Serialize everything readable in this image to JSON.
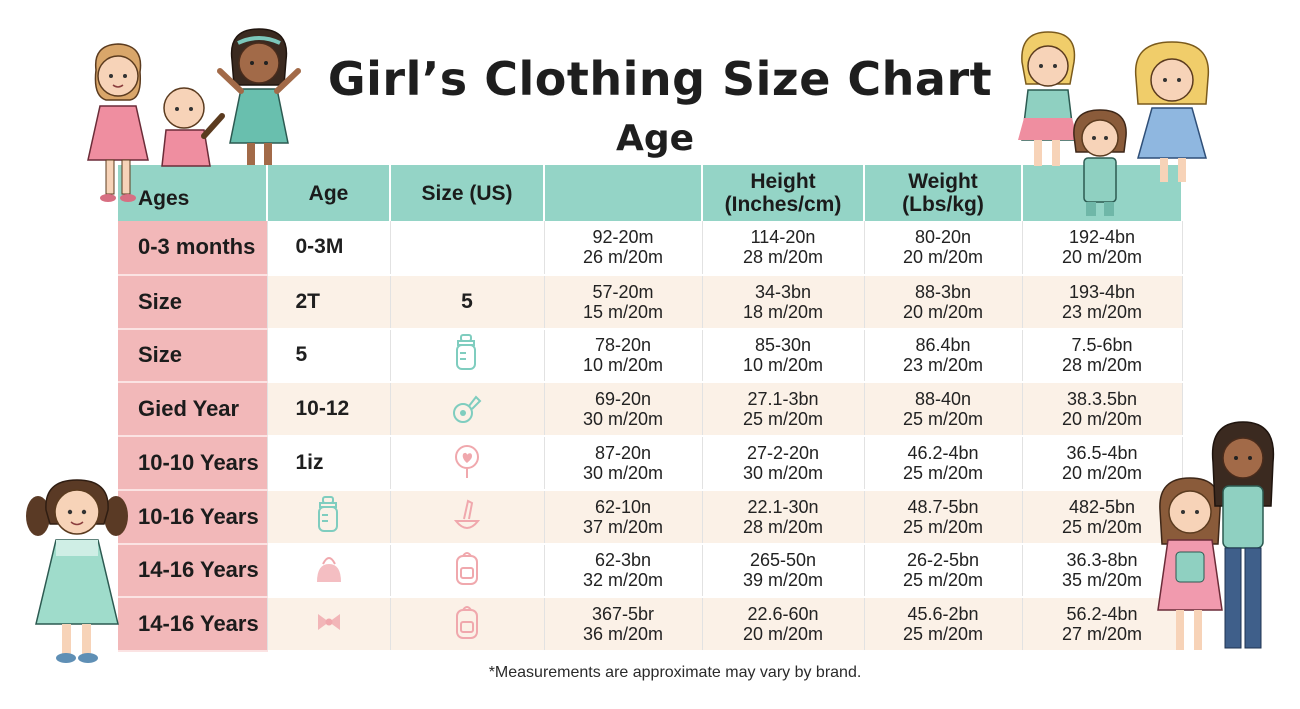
{
  "title": "Girl’s Clothing Size Chart",
  "subtitle": "Age",
  "headers": [
    "Ages",
    "Age",
    "Size (US)",
    "",
    "Height\n(Inches/cm)",
    "Weight\n(Lbs/kg)",
    ""
  ],
  "header_height": [
    "Height",
    "(Inches/cm)"
  ],
  "header_weight": [
    "Weight",
    "(Lbs/kg)"
  ],
  "rows": [
    {
      "label": "0-3 months",
      "age": "0-3M",
      "size": "",
      "icon_age": "",
      "icon_size": "",
      "m": [
        [
          "92-20m",
          "26 m/20m"
        ],
        [
          "114-20n",
          "28 m/20m"
        ],
        [
          "80-20n",
          "20 m/20m"
        ],
        [
          "192-4bn",
          "20 m/20m"
        ]
      ]
    },
    {
      "label": "Size",
      "age": "2T",
      "size": "5",
      "icon_age": "",
      "icon_size": "",
      "m": [
        [
          "57-20m",
          "15 m/20m"
        ],
        [
          "34-3bn",
          "18 m/20m"
        ],
        [
          "88-3bn",
          "20 m/20m"
        ],
        [
          "193-4bn",
          "23 m/20m"
        ]
      ]
    },
    {
      "label": "Size",
      "age": "5",
      "size": "",
      "icon_age": "",
      "icon_size": "baby-bottle-icon",
      "m": [
        [
          "78-20n",
          "10 m/20m"
        ],
        [
          "85-30n",
          "10 m/20m"
        ],
        [
          "86.4bn",
          "23 m/20m"
        ],
        [
          "7.5-6bn",
          "28 m/20m"
        ]
      ]
    },
    {
      "label": "Gied Year",
      "age": "10-12",
      "size": "",
      "icon_age": "",
      "icon_size": "rattle-icon",
      "m": [
        [
          "69-20n",
          "30 m/20m"
        ],
        [
          "27.1-3bn",
          "25 m/20m"
        ],
        [
          "88-40n",
          "25 m/20m"
        ],
        [
          "38.3.5bn",
          "20 m/20m"
        ]
      ]
    },
    {
      "label": "10-10 Years",
      "age": "1iz",
      "size": "",
      "icon_age": "",
      "icon_size": "heart-toy-icon",
      "m": [
        [
          "87-20n",
          "30 m/20m"
        ],
        [
          "27-2-20n",
          "30 m/20m"
        ],
        [
          "46.2-4bn",
          "25 m/20m"
        ],
        [
          "36.5-4bn",
          "20 m/20m"
        ]
      ]
    },
    {
      "label": "10-16 Years",
      "age": "",
      "size": "",
      "icon_age": "baby-bottle-icon",
      "icon_size": "toy-icon",
      "m": [
        [
          "62-10n",
          "37 m/20m"
        ],
        [
          "22.1-30n",
          "28 m/20m"
        ],
        [
          "48.7-5bn",
          "25 m/20m"
        ],
        [
          "482-5bn",
          "25 m/20m"
        ]
      ]
    },
    {
      "label": "14-16 Years",
      "age": "",
      "size": "",
      "icon_age": "handbag-icon",
      "icon_size": "backpack-icon",
      "m": [
        [
          "62-3bn",
          "32 m/20m"
        ],
        [
          "265-50n",
          "39 m/20m"
        ],
        [
          "26-2-5bn",
          "25 m/20m"
        ],
        [
          "36.3-8bn",
          "35 m/20m"
        ]
      ]
    },
    {
      "label": "14-16 Years",
      "age": "",
      "size": "",
      "icon_age": "bow-icon",
      "icon_size": "backpack-icon",
      "m": [
        [
          "367-5br",
          "36 m/20m"
        ],
        [
          "22.6-60n",
          "20 m/20m"
        ],
        [
          "45.6-2bn",
          "25 m/20m"
        ],
        [
          "56.2-4bn",
          "27 m/20m"
        ]
      ]
    }
  ],
  "footnote": "*Measurements are approximate may vary by brand.",
  "colors": {
    "header": "#94d4c6",
    "age_col": "#f2b8b9",
    "alt_row": "#fbf1e7",
    "icon": "#f0a8ad",
    "icon_teal": "#7fcdbf"
  }
}
